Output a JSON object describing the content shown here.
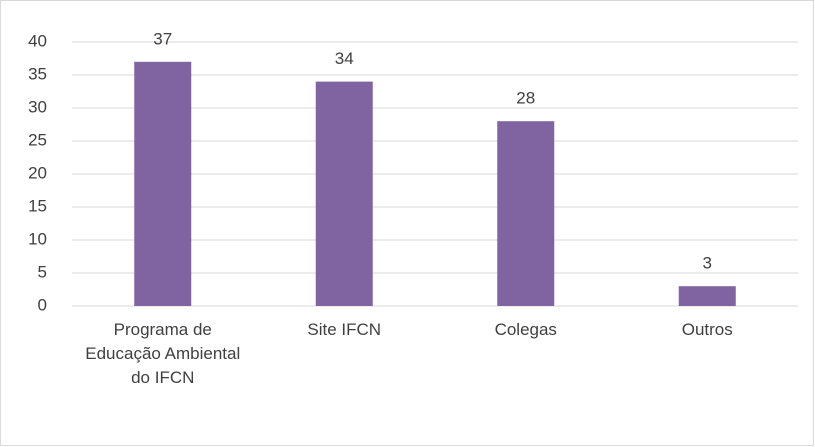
{
  "chart_data": {
    "type": "bar",
    "categories": [
      "Programa de Educação Ambiental do IFCN",
      "Site IFCN",
      "Colegas",
      "Outros"
    ],
    "values": [
      37,
      34,
      28,
      3
    ],
    "color": "#8064a2",
    "ylim": [
      0,
      40
    ],
    "yticks": [
      0,
      5,
      10,
      15,
      20,
      25,
      30,
      35,
      40
    ],
    "grid": true
  }
}
